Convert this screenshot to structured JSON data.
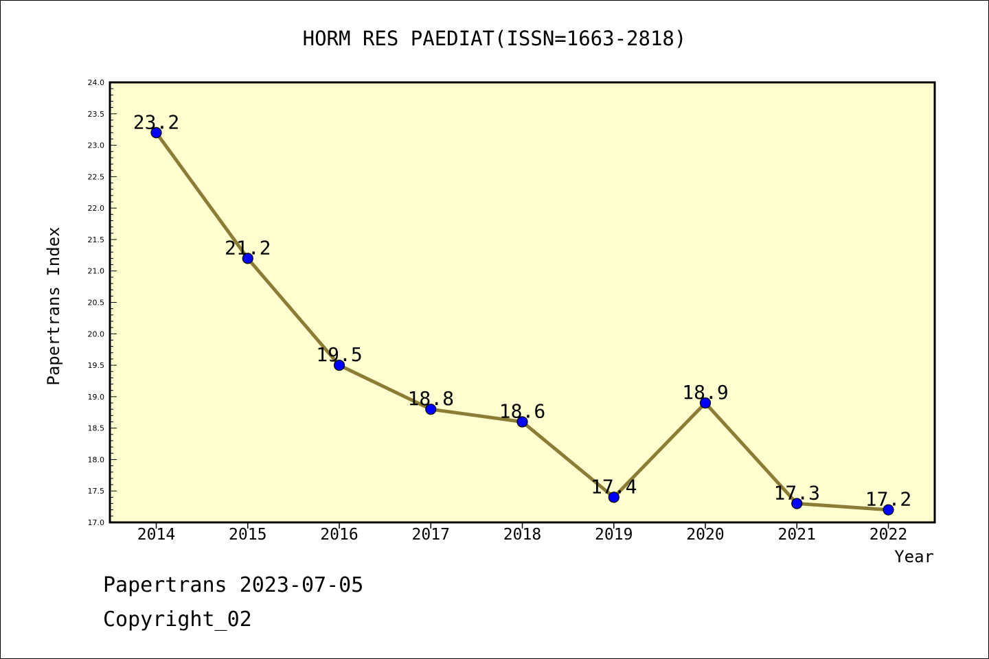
{
  "chart_data": {
    "type": "line",
    "title": "HORM RES PAEDIAT(ISSN=1663-2818)",
    "xlabel": "Year",
    "ylabel": "Papertrans Index",
    "categories": [
      "2014",
      "2015",
      "2016",
      "2017",
      "2018",
      "2019",
      "2020",
      "2021",
      "2022"
    ],
    "values": [
      23.2,
      21.2,
      19.5,
      18.8,
      18.6,
      17.4,
      18.9,
      17.3,
      17.2
    ],
    "data_labels": [
      "23.2",
      "21.2",
      "19.5",
      "18.8",
      "18.6",
      "17.4",
      "18.9",
      "17.3",
      "17.2"
    ],
    "ylim": [
      17.0,
      24.0
    ],
    "yticks": [
      "17.0",
      "17.5",
      "18.0",
      "18.5",
      "19.0",
      "19.5",
      "20.0",
      "20.5",
      "21.0",
      "21.5",
      "22.0",
      "22.5",
      "23.0",
      "23.5",
      "24.0"
    ],
    "grid": false,
    "legend": "none",
    "colors": {
      "plot_background": "#ffffd0",
      "line": "#8b7d35",
      "marker": "#0000ff"
    }
  },
  "footer": {
    "date_line": "Papertrans 2023-07-05",
    "copyright": "Copyright_02"
  }
}
